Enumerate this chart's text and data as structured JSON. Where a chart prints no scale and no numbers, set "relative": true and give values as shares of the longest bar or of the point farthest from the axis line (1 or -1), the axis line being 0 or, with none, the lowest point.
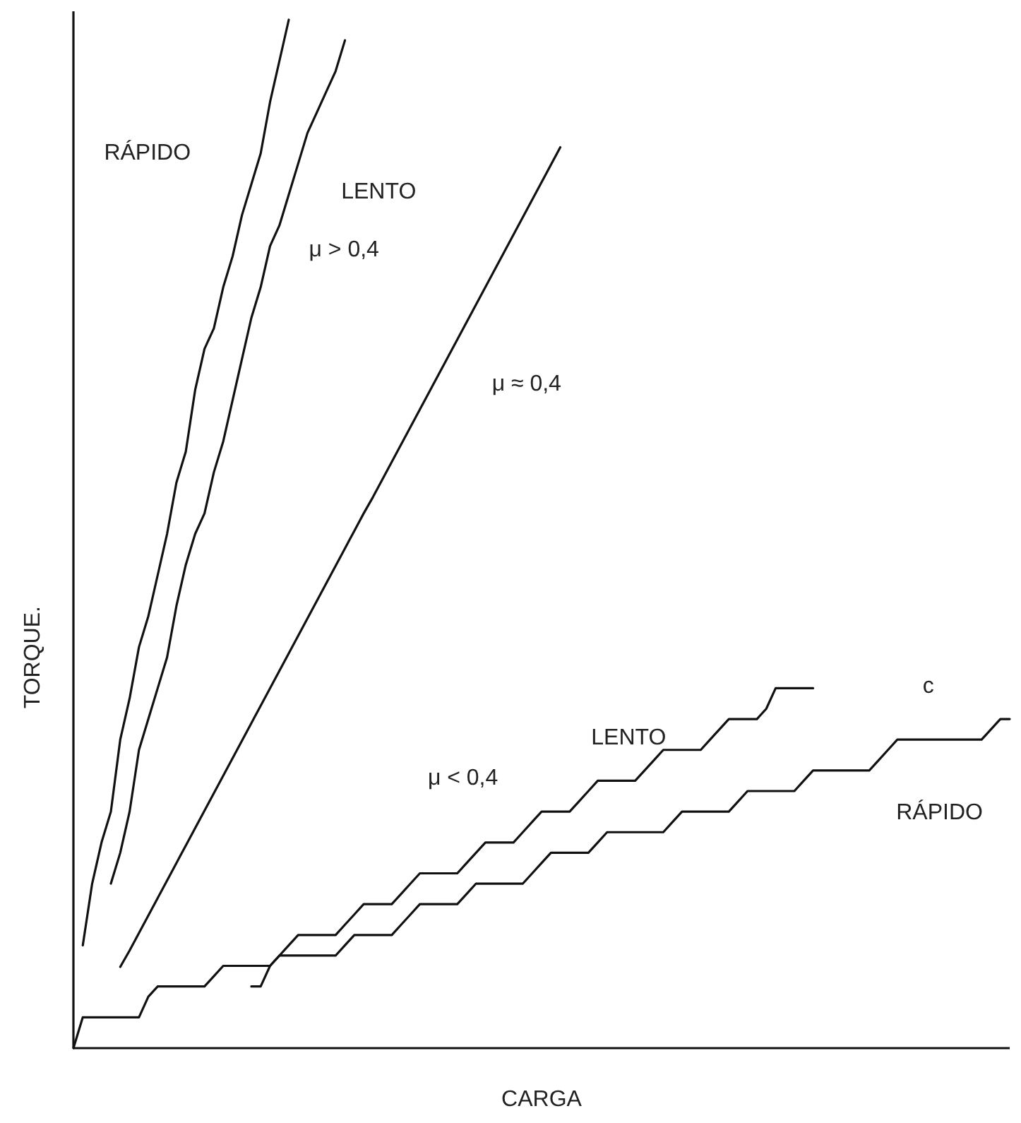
{
  "chart_data": {
    "type": "line",
    "relative": true,
    "xlabel": "CARGA",
    "ylabel": "TORQUE.",
    "categories": [
      null,
      null,
      null,
      null,
      null,
      null,
      null,
      null,
      null,
      null,
      null,
      null,
      null,
      null,
      null,
      null,
      null,
      null,
      null,
      null,
      null,
      null,
      null,
      null,
      null,
      null,
      null,
      null,
      null,
      null,
      null,
      null,
      null,
      null,
      null,
      null,
      null,
      null,
      null,
      null,
      null,
      null,
      null,
      null,
      null,
      null,
      null,
      null,
      null,
      null,
      null,
      null,
      null,
      null,
      null,
      null,
      null,
      null,
      null,
      null,
      null,
      null,
      null,
      null,
      null,
      null,
      null,
      null,
      null,
      null,
      null,
      null,
      null,
      null,
      null,
      null,
      null,
      null,
      null,
      null,
      null,
      null,
      null,
      null,
      null,
      null,
      null,
      null,
      null,
      null,
      null,
      null,
      null,
      null,
      null,
      null,
      null,
      null,
      null,
      null,
      null
    ],
    "series": [
      {
        "name": "RÁPIDO",
        "color": "#111111",
        "values": [
          null,
          0.1,
          0.16,
          0.2,
          0.23,
          0.3,
          0.34,
          0.39,
          0.42,
          0.46,
          0.5,
          0.55,
          0.58,
          0.64,
          0.68,
          0.7,
          0.74,
          0.77,
          0.81,
          0.84,
          0.87,
          0.92,
          0.96,
          1.0,
          null,
          null,
          null,
          null,
          null,
          null,
          null,
          null,
          null,
          null,
          null,
          null,
          null,
          null,
          null,
          null,
          null,
          null,
          null,
          null,
          null,
          null,
          null,
          null,
          null,
          null,
          null,
          null,
          null,
          null,
          null,
          null,
          null,
          null,
          null,
          null,
          null,
          null,
          null,
          null,
          null,
          null,
          null,
          null,
          null,
          null,
          null,
          null,
          null,
          null,
          null,
          null,
          null,
          null,
          null,
          null,
          null,
          null,
          null,
          null,
          null,
          null,
          null,
          null,
          null,
          null,
          null,
          null,
          null,
          null,
          null,
          null,
          null,
          null,
          null,
          null,
          null
        ]
      },
      {
        "name": "LENTO",
        "color": "#111111",
        "values": [
          null,
          null,
          null,
          null,
          0.16,
          0.19,
          0.23,
          0.29,
          0.32,
          0.35,
          0.38,
          0.43,
          0.47,
          0.5,
          0.52,
          0.56,
          0.59,
          0.63,
          0.67,
          0.71,
          0.74,
          0.78,
          0.8,
          0.83,
          0.86,
          0.89,
          0.91,
          0.93,
          0.95,
          0.98,
          null,
          null,
          null,
          null,
          null,
          null,
          null,
          null,
          null,
          null,
          null,
          null,
          null,
          null,
          null,
          null,
          null,
          null,
          null,
          null,
          null,
          null,
          null,
          null,
          null,
          null,
          null,
          null,
          null,
          null,
          null,
          null,
          null,
          null,
          null,
          null,
          null,
          null,
          null,
          null,
          null,
          null,
          null,
          null,
          null,
          null,
          null,
          null,
          null,
          null,
          null,
          null,
          null,
          null,
          null,
          null,
          null,
          null,
          null,
          null,
          null,
          null,
          null,
          null,
          null,
          null,
          null,
          null,
          null,
          null,
          null
        ]
      },
      {
        "color": "#111111",
        "values": [
          null,
          null,
          null,
          null,
          null,
          0.079,
          0.095,
          0.112,
          0.129,
          0.146,
          0.163,
          0.18,
          0.197,
          0.214,
          0.231,
          0.248,
          0.265,
          0.282,
          0.299,
          0.316,
          0.333,
          0.35,
          0.367,
          0.384,
          0.401,
          0.418,
          0.435,
          0.452,
          0.469,
          0.486,
          0.503,
          0.52,
          0.536,
          0.553,
          0.57,
          0.587,
          0.604,
          0.621,
          0.638,
          0.655,
          0.672,
          0.689,
          0.706,
          0.723,
          0.74,
          0.757,
          0.774,
          0.791,
          0.808,
          0.825,
          0.842,
          0.859,
          0.876,
          null,
          null,
          null,
          null,
          null,
          null,
          null,
          null,
          null,
          null,
          null,
          null,
          null,
          null,
          null,
          null,
          null,
          null,
          null,
          null,
          null,
          null,
          null,
          null,
          null,
          null,
          null,
          null,
          null,
          null,
          null,
          null,
          null,
          null,
          null,
          null,
          null,
          null,
          null,
          null,
          null,
          null,
          null,
          null,
          null,
          null,
          null,
          null
        ]
      },
      {
        "name": "LENTO",
        "color": "#111111",
        "values": [
          0,
          0.03,
          0.03,
          0.03,
          0.03,
          0.03,
          0.03,
          0.03,
          0.05,
          0.06,
          0.06,
          0.06,
          0.06,
          0.06,
          0.06,
          0.07,
          0.08,
          0.08,
          0.08,
          0.08,
          0.08,
          0.08,
          0.09,
          0.1,
          0.11,
          0.11,
          0.11,
          0.11,
          0.11,
          0.12,
          0.13,
          0.14,
          0.14,
          0.14,
          0.14,
          0.15,
          0.16,
          0.17,
          0.17,
          0.17,
          0.17,
          0.17,
          0.18,
          0.19,
          0.2,
          0.2,
          0.2,
          0.2,
          0.21,
          0.22,
          0.23,
          0.23,
          0.23,
          0.23,
          0.24,
          0.25,
          0.26,
          0.26,
          0.26,
          0.26,
          0.26,
          0.27,
          0.28,
          0.29,
          0.29,
          0.29,
          0.29,
          0.29,
          0.3,
          0.31,
          0.32,
          0.32,
          0.32,
          0.32,
          0.33,
          0.35,
          0.35,
          0.35,
          0.35,
          0.35,
          null,
          null,
          null,
          null,
          null,
          null,
          null,
          null,
          null,
          null,
          null,
          null,
          null,
          null,
          null,
          null,
          null,
          null,
          null,
          null,
          null
        ]
      },
      {
        "name": "RÁPIDO",
        "color": "#111111",
        "values": [
          null,
          null,
          null,
          null,
          null,
          null,
          null,
          null,
          null,
          null,
          null,
          null,
          null,
          null,
          null,
          null,
          null,
          null,
          null,
          0.06,
          0.06,
          0.08,
          0.09,
          0.09,
          0.09,
          0.09,
          0.09,
          0.09,
          0.09,
          0.1,
          0.11,
          0.11,
          0.11,
          0.11,
          0.11,
          0.12,
          0.13,
          0.14,
          0.14,
          0.14,
          0.14,
          0.14,
          0.15,
          0.16,
          0.16,
          0.16,
          0.16,
          0.16,
          0.16,
          0.17,
          0.18,
          0.19,
          0.19,
          0.19,
          0.19,
          0.19,
          0.2,
          0.21,
          0.21,
          0.21,
          0.21,
          0.21,
          0.21,
          0.21,
          0.22,
          0.23,
          0.23,
          0.23,
          0.23,
          0.23,
          0.23,
          0.24,
          0.25,
          0.25,
          0.25,
          0.25,
          0.25,
          0.25,
          0.26,
          0.27,
          0.27,
          0.27,
          0.27,
          0.27,
          0.27,
          0.27,
          0.28,
          0.29,
          0.3,
          0.3,
          0.3,
          0.3,
          0.3,
          0.3,
          0.3,
          0.3,
          0.3,
          0.3,
          0.31,
          0.32,
          0.32
        ]
      }
    ],
    "annotations": [
      "μ > 0,4",
      "μ ≈ 0,4",
      "μ < 0,4",
      "c"
    ]
  }
}
